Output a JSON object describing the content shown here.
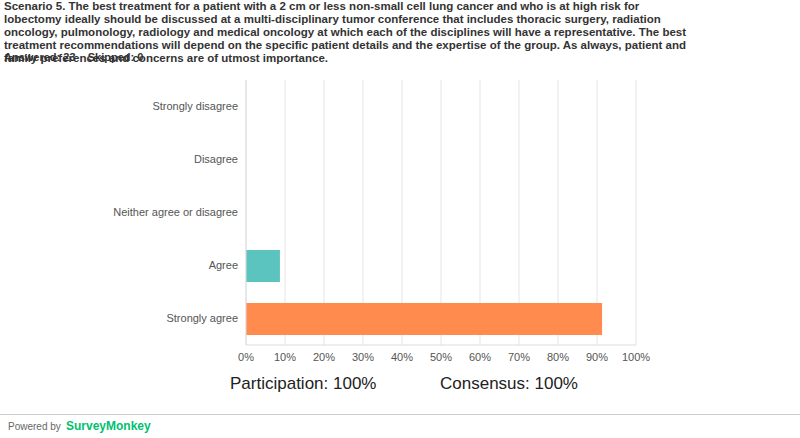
{
  "chart_data": {
    "type": "bar",
    "orientation": "horizontal",
    "title": "Scenario 5. The best treatment for a patient with a 2 cm or less non-small cell lung cancer and who is at high risk for lobectomy ideally should be discussed at a multi-disciplinary tumor conference that includes thoracic surgery, radiation oncology, pulmonology, radiology and medical oncology at which each of the disciplines will have a representative. The best treatment recommendations will depend on the specific patient details and the expertise of the group. As always, patient and family preferences and concerns are of utmost importance.",
    "subtitle": "Answered: 23    Skipped: 0",
    "annotations": [
      "Participation: 100%",
      "Consensus: 100%",
      "Powered by",
      "SurveyMonkey"
    ],
    "categories": [
      "Strongly disagree",
      "Disagree",
      "Neither agree or disagree",
      "Agree",
      "Strongly agree"
    ],
    "values": [
      0,
      0,
      0,
      8.7,
      91.3
    ],
    "colors": [
      "#5bc4bf",
      "#5bc4bf",
      "#5bc4bf",
      "#5bc4bf",
      "#ff8b4f"
    ],
    "xlim": [
      0,
      100
    ],
    "xticks": [
      {
        "value": 0,
        "label": "0%"
      },
      {
        "value": 10,
        "label": "10%"
      },
      {
        "value": 20,
        "label": "20%"
      },
      {
        "value": 30,
        "label": "30%"
      },
      {
        "value": 40,
        "label": "40%"
      },
      {
        "value": 50,
        "label": "50%"
      },
      {
        "value": 60,
        "label": "60%"
      },
      {
        "value": 70,
        "label": "70%"
      },
      {
        "value": 80,
        "label": "80%"
      },
      {
        "value": 90,
        "label": "90%"
      },
      {
        "value": 100,
        "label": "100%"
      }
    ],
    "grid": true
  }
}
